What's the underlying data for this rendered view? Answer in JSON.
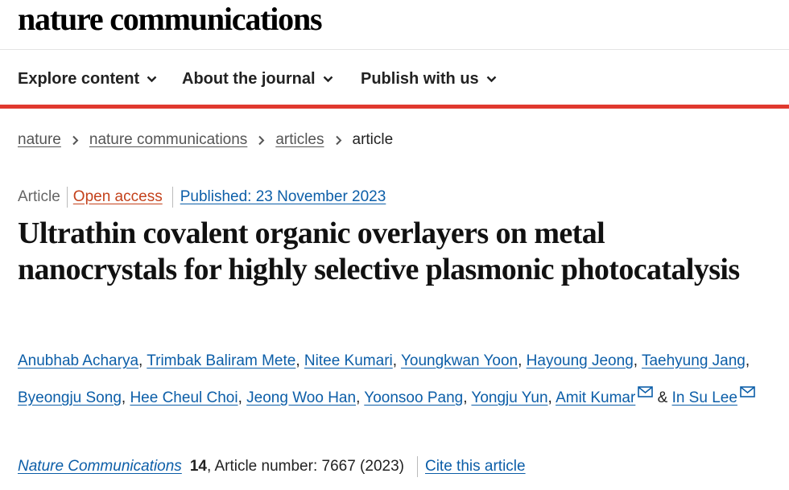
{
  "brand": {
    "logo_text": "nature communications"
  },
  "nav": {
    "items": [
      {
        "label": "Explore content"
      },
      {
        "label": "About the journal"
      },
      {
        "label": "Publish with us"
      }
    ]
  },
  "breadcrumb": {
    "items": [
      "nature",
      "nature communications",
      "articles"
    ],
    "current": "article"
  },
  "article": {
    "type": "Article",
    "access": "Open access",
    "published": "Published: 23 November 2023",
    "title": "Ultrathin covalent organic overlayers on metal nanocrystals for highly selective plasmonic photocatalysis",
    "authors": [
      "Anubhab Acharya",
      "Trimbak Baliram Mete",
      "Nitee Kumari",
      "Youngkwan Yoon",
      "Hayoung Jeong",
      "Taehyung Jang",
      "Byeongju Song",
      "Hee Cheul Choi",
      "Jeong Woo Han",
      "Yoonsoo Pang",
      "Yongju Yun",
      "Amit Kumar",
      "In Su Lee"
    ],
    "author_separator": ",",
    "author_conjunction": "&",
    "journal": "Nature Communications",
    "volume": "14",
    "article_number": ", Article number: 7667 (2023)",
    "cite_label": "Cite this article"
  },
  "colors": {
    "accent_red": "#e0392e",
    "link_blue": "#0c5ea8",
    "open_access": "#c4421c"
  }
}
